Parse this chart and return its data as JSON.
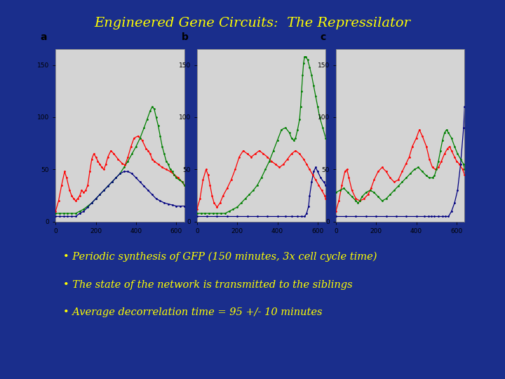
{
  "title": "Engineered Gene Circuits:  The Repressilator",
  "title_color": "#FFFF00",
  "bg_color": "#1a2e8c",
  "panel_outer_bg": "#C8C8C8",
  "panel_bg": "#D4D4D4",
  "bullet_color": "#FFFF00",
  "panel_labels": [
    "a",
    "b",
    "c"
  ],
  "xlim": [
    0,
    640
  ],
  "ylim": [
    0,
    165
  ],
  "xticks": [
    0,
    200,
    400,
    600
  ],
  "yticks": [
    0,
    50,
    100,
    150
  ],
  "bullet_lines": [
    "• Periodic synthesis of GFP (150 minutes, 3x cell cycle time)",
    "• The state of the network is transmitted to the siblings",
    "• Average decorrelation time = 95 +/- 10 minutes"
  ],
  "panel_a_red_x": [
    0,
    15,
    30,
    45,
    55,
    70,
    80,
    90,
    100,
    110,
    120,
    130,
    140,
    150,
    160,
    170,
    180,
    190,
    200,
    210,
    220,
    230,
    240,
    250,
    260,
    275,
    290,
    310,
    330,
    345,
    360,
    375,
    390,
    410,
    430,
    450,
    460,
    470,
    480,
    490,
    510,
    530,
    550,
    570,
    590,
    610,
    630,
    640
  ],
  "panel_a_red_y": [
    10,
    20,
    35,
    48,
    42,
    30,
    25,
    22,
    20,
    22,
    25,
    30,
    28,
    30,
    35,
    48,
    60,
    65,
    62,
    58,
    55,
    52,
    50,
    55,
    62,
    68,
    65,
    60,
    56,
    54,
    62,
    72,
    80,
    82,
    78,
    70,
    68,
    65,
    60,
    58,
    55,
    52,
    50,
    48,
    45,
    42,
    38,
    35
  ],
  "panel_a_green_x": [
    0,
    20,
    40,
    60,
    80,
    100,
    120,
    140,
    160,
    180,
    200,
    220,
    240,
    260,
    280,
    300,
    320,
    340,
    360,
    380,
    400,
    420,
    440,
    455,
    470,
    480,
    490,
    500,
    510,
    520,
    530,
    540,
    550,
    560,
    570,
    580,
    590,
    600,
    615,
    630,
    640
  ],
  "panel_a_green_y": [
    8,
    8,
    8,
    8,
    8,
    8,
    10,
    12,
    15,
    18,
    22,
    26,
    30,
    34,
    38,
    42,
    46,
    52,
    58,
    65,
    72,
    80,
    90,
    98,
    106,
    110,
    108,
    100,
    92,
    82,
    72,
    65,
    58,
    55,
    50,
    48,
    45,
    42,
    40,
    38,
    35
  ],
  "panel_a_blue_x": [
    0,
    20,
    40,
    60,
    80,
    100,
    120,
    140,
    160,
    180,
    200,
    220,
    240,
    260,
    280,
    300,
    320,
    340,
    360,
    380,
    400,
    420,
    440,
    460,
    480,
    500,
    520,
    540,
    560,
    580,
    600,
    620,
    640
  ],
  "panel_a_blue_y": [
    5,
    5,
    5,
    5,
    5,
    5,
    8,
    10,
    14,
    18,
    22,
    26,
    30,
    34,
    38,
    42,
    46,
    48,
    48,
    46,
    42,
    38,
    34,
    30,
    26,
    22,
    20,
    18,
    17,
    16,
    15,
    15,
    15
  ],
  "panel_b_red_x": [
    0,
    15,
    30,
    45,
    55,
    65,
    75,
    85,
    100,
    115,
    130,
    150,
    170,
    190,
    210,
    230,
    250,
    270,
    290,
    310,
    330,
    350,
    370,
    390,
    410,
    430,
    450,
    470,
    490,
    510,
    530,
    545,
    560,
    575,
    590,
    605,
    620,
    635,
    640
  ],
  "panel_b_red_y": [
    12,
    22,
    40,
    50,
    45,
    35,
    25,
    18,
    14,
    18,
    25,
    32,
    40,
    50,
    62,
    68,
    65,
    62,
    65,
    68,
    65,
    62,
    58,
    55,
    52,
    55,
    60,
    65,
    68,
    65,
    60,
    55,
    50,
    45,
    40,
    35,
    30,
    25,
    22
  ],
  "panel_b_green_x": [
    0,
    20,
    40,
    60,
    80,
    100,
    120,
    140,
    160,
    180,
    200,
    220,
    240,
    260,
    280,
    300,
    320,
    340,
    360,
    380,
    400,
    420,
    440,
    460,
    470,
    480,
    490,
    500,
    510,
    515,
    520,
    525,
    530,
    535,
    540,
    550,
    560,
    570,
    580,
    590,
    600,
    610,
    625,
    640
  ],
  "panel_b_green_y": [
    8,
    8,
    8,
    8,
    8,
    8,
    8,
    8,
    10,
    12,
    14,
    18,
    22,
    26,
    30,
    35,
    42,
    50,
    58,
    68,
    78,
    88,
    90,
    85,
    80,
    78,
    80,
    88,
    98,
    110,
    125,
    140,
    152,
    158,
    158,
    155,
    148,
    140,
    130,
    120,
    110,
    100,
    90,
    80
  ],
  "panel_b_blue_x": [
    0,
    50,
    100,
    150,
    200,
    250,
    300,
    350,
    400,
    440,
    470,
    500,
    520,
    535,
    545,
    555,
    560,
    570,
    580,
    590,
    600,
    615,
    630,
    640
  ],
  "panel_b_blue_y": [
    5,
    5,
    5,
    5,
    5,
    5,
    5,
    5,
    5,
    5,
    5,
    5,
    5,
    5,
    8,
    15,
    25,
    38,
    48,
    52,
    48,
    42,
    38,
    35
  ],
  "panel_c_red_x": [
    0,
    15,
    30,
    45,
    55,
    65,
    80,
    100,
    120,
    140,
    160,
    175,
    190,
    210,
    230,
    250,
    270,
    290,
    310,
    330,
    350,
    365,
    380,
    400,
    415,
    430,
    450,
    465,
    480,
    495,
    510,
    525,
    540,
    555,
    565,
    575,
    590,
    600,
    615,
    630,
    640
  ],
  "panel_c_red_y": [
    10,
    20,
    35,
    48,
    50,
    42,
    30,
    22,
    20,
    22,
    26,
    32,
    40,
    48,
    52,
    48,
    42,
    38,
    40,
    48,
    56,
    62,
    72,
    80,
    88,
    82,
    72,
    60,
    52,
    50,
    52,
    58,
    65,
    70,
    72,
    68,
    62,
    58,
    55,
    50,
    45
  ],
  "panel_c_green_x": [
    0,
    20,
    40,
    60,
    80,
    100,
    110,
    120,
    130,
    150,
    170,
    190,
    210,
    230,
    250,
    270,
    290,
    310,
    330,
    350,
    370,
    390,
    410,
    430,
    450,
    465,
    480,
    490,
    500,
    510,
    520,
    530,
    540,
    550,
    560,
    575,
    590,
    605,
    620,
    635,
    640
  ],
  "panel_c_green_y": [
    28,
    30,
    32,
    28,
    24,
    20,
    18,
    20,
    24,
    28,
    30,
    28,
    24,
    20,
    22,
    26,
    30,
    34,
    38,
    42,
    46,
    50,
    52,
    48,
    44,
    42,
    42,
    44,
    50,
    58,
    68,
    78,
    85,
    88,
    85,
    80,
    72,
    65,
    60,
    55,
    50
  ],
  "panel_c_blue_x": [
    0,
    50,
    100,
    150,
    200,
    250,
    300,
    350,
    400,
    440,
    460,
    475,
    490,
    510,
    530,
    545,
    560,
    575,
    590,
    605,
    620,
    635,
    640
  ],
  "panel_c_blue_y": [
    5,
    5,
    5,
    5,
    5,
    5,
    5,
    5,
    5,
    5,
    5,
    5,
    5,
    5,
    5,
    5,
    5,
    10,
    18,
    30,
    55,
    90,
    110
  ]
}
